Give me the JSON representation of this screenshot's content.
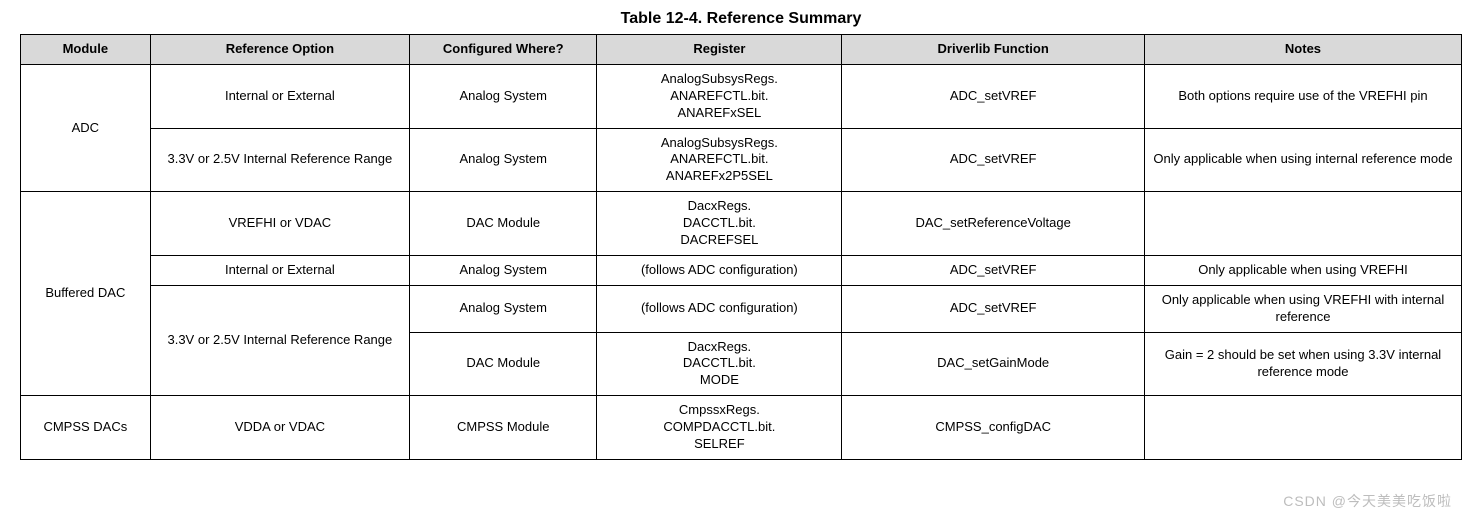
{
  "title": "Table 12-4. Reference Summary",
  "columns": [
    "Module",
    "Reference Option",
    "Configured Where?",
    "Register",
    "Driverlib Function",
    "Notes"
  ],
  "header_bg": "#d9d9d9",
  "border_color": "#000000",
  "font_family": "Arial, Helvetica, sans-serif",
  "rows": [
    {
      "module": "ADC",
      "option": "Internal or External",
      "where": "Analog System",
      "register": [
        "AnalogSubsysRegs.",
        "ANAREFCTL.bit.",
        "ANAREFxSEL"
      ],
      "func": "ADC_setVREF",
      "notes": "Both options require use of the VREFHI pin"
    },
    {
      "option": "3.3V or 2.5V Internal Reference Range",
      "where": "Analog System",
      "register": [
        "AnalogSubsysRegs.",
        "ANAREFCTL.bit.",
        "ANAREFx2P5SEL"
      ],
      "func": "ADC_setVREF",
      "notes": "Only applicable when using internal reference mode"
    },
    {
      "module": "Buffered DAC",
      "option": "VREFHI or VDAC",
      "where": "DAC Module",
      "register": [
        "DacxRegs.",
        "DACCTL.bit.",
        "DACREFSEL"
      ],
      "func": "DAC_setReferenceVoltage",
      "notes": ""
    },
    {
      "option": "Internal or External",
      "where": "Analog System",
      "register_single": "(follows ADC configuration)",
      "func": "ADC_setVREF",
      "notes": "Only applicable when using VREFHI"
    },
    {
      "option": "3.3V or 2.5V Internal Reference Range",
      "where": "Analog System",
      "register_single": "(follows ADC configuration)",
      "func": "ADC_setVREF",
      "notes": "Only applicable when using VREFHI with internal reference"
    },
    {
      "where": "DAC Module",
      "register": [
        "DacxRegs.",
        "DACCTL.bit.",
        "MODE"
      ],
      "func": "DAC_setGainMode",
      "notes": "Gain = 2 should be set when using 3.3V internal reference mode"
    },
    {
      "module": "CMPSS DACs",
      "option": "VDDA or VDAC",
      "where": "CMPSS Module",
      "register": [
        "CmpssxRegs.",
        "COMPDACCTL.bit.",
        "SELREF"
      ],
      "func": "CMPSS_configDAC",
      "notes": ""
    }
  ],
  "watermark": "CSDN @今天美美吃饭啦"
}
